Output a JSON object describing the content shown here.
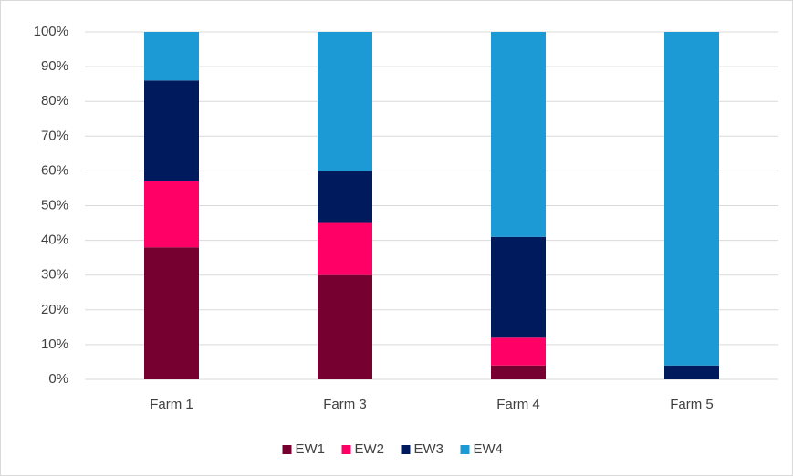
{
  "chart_data": {
    "type": "stacked_bar",
    "categories": [
      "Farm 1",
      "Farm 3",
      "Farm 4",
      "Farm 5"
    ],
    "series": [
      {
        "name": "EW1",
        "color": "#76002f",
        "values": [
          38,
          30,
          4,
          0
        ]
      },
      {
        "name": "EW2",
        "color": "#ff0066",
        "values": [
          19,
          15,
          8,
          0
        ]
      },
      {
        "name": "EW3",
        "color": "#001a5e",
        "values": [
          29,
          15,
          29,
          4
        ]
      },
      {
        "name": "EW4",
        "color": "#1b9ad6",
        "values": [
          14,
          40,
          59,
          96
        ]
      }
    ],
    "ylim": [
      0,
      100
    ],
    "yticks": [
      {
        "value": 0,
        "label": "0%"
      },
      {
        "value": 10,
        "label": "10%"
      },
      {
        "value": 20,
        "label": "20%"
      },
      {
        "value": 30,
        "label": "30%"
      },
      {
        "value": 40,
        "label": "40%"
      },
      {
        "value": 50,
        "label": "50%"
      },
      {
        "value": 60,
        "label": "60%"
      },
      {
        "value": 70,
        "label": "70%"
      },
      {
        "value": 80,
        "label": "80%"
      },
      {
        "value": 90,
        "label": "90%"
      },
      {
        "value": 100,
        "label": "100%"
      }
    ],
    "grid": true,
    "legend": "bottom"
  }
}
